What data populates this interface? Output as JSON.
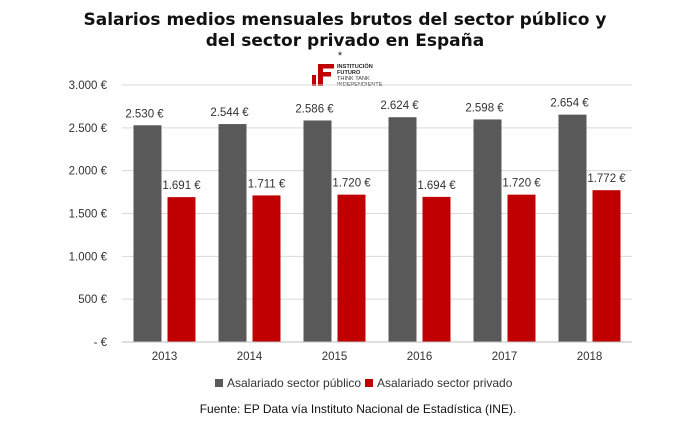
{
  "chart_data": {
    "type": "bar",
    "title_line1": "Salarios medios mensuales brutos del sector público y",
    "title_line2": "del sector privado en España",
    "title_mark": "*",
    "categories": [
      "2013",
      "2014",
      "2015",
      "2016",
      "2017",
      "2018"
    ],
    "series": [
      {
        "name": "Asalariado sector público",
        "color": "#595959",
        "values": [
          2530,
          2544,
          2586,
          2624,
          2598,
          2654
        ],
        "labels": [
          "2.530 €",
          "2.544 €",
          "2.586 €",
          "2.624 €",
          "2.598 €",
          "2.654 €"
        ]
      },
      {
        "name": "Asalariado sector privado",
        "color": "#C00000",
        "values": [
          1691,
          1711,
          1720,
          1694,
          1720,
          1772
        ],
        "labels": [
          "1.691 €",
          "1.711 €",
          "1.720 €",
          "1.694 €",
          "1.720 €",
          "1.772 €"
        ]
      }
    ],
    "ylim": [
      0,
      3000
    ],
    "yticks": [
      0,
      500,
      1000,
      1500,
      2000,
      2500,
      3000
    ],
    "ytick_labels": [
      "-   €",
      "500 €",
      "1.000 €",
      "1.500 €",
      "2.000 €",
      "2.500 €",
      "3.000 €"
    ],
    "grid": true,
    "legend_position": "bottom",
    "source": "Fuente: EP Data vía Instituto Nacional de Estadística (INE)."
  },
  "logo": {
    "icon": "institucion-futuro-logo",
    "brand_color": "#C00000",
    "line1": "INSTITUCIÓN",
    "line2": "FUTURO",
    "line3": "THINK TANK",
    "line4": "INDEPENDIENTE"
  }
}
